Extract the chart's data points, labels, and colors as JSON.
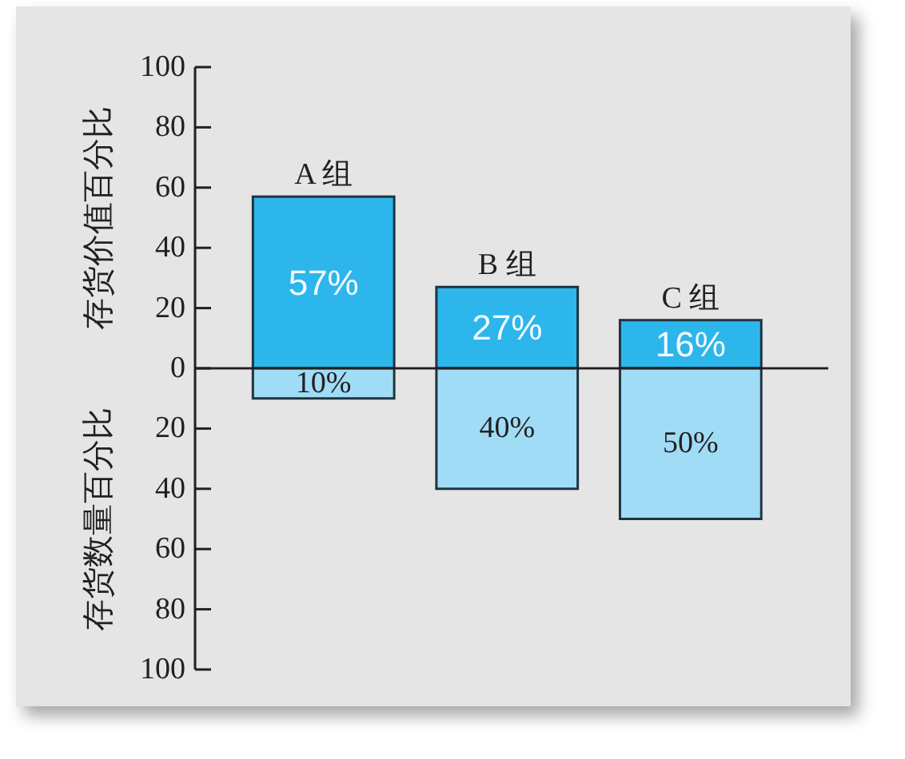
{
  "chart_data": [
    {
      "type": "bar",
      "categories": [
        "A 组",
        "B 组",
        "C 组"
      ],
      "ylabel": "存货价值百分比",
      "ylim": [
        0,
        100
      ],
      "yticks": [
        0,
        20,
        40,
        60,
        80,
        100
      ],
      "series": [
        {
          "color": "#2db6ec",
          "values": [
            57,
            27,
            16
          ],
          "value_labels": [
            "57%",
            "27%",
            "16%"
          ]
        }
      ]
    },
    {
      "type": "bar",
      "categories": [
        null,
        null,
        null
      ],
      "ylabel": "存货数量百分比",
      "ylim": [
        100,
        0
      ],
      "yticks": [
        20,
        40,
        60,
        80,
        100
      ],
      "series": [
        {
          "color": "#a0dcf5",
          "values": [
            10,
            40,
            50
          ],
          "value_labels": [
            "10%",
            "40%",
            "50%"
          ]
        }
      ]
    }
  ]
}
